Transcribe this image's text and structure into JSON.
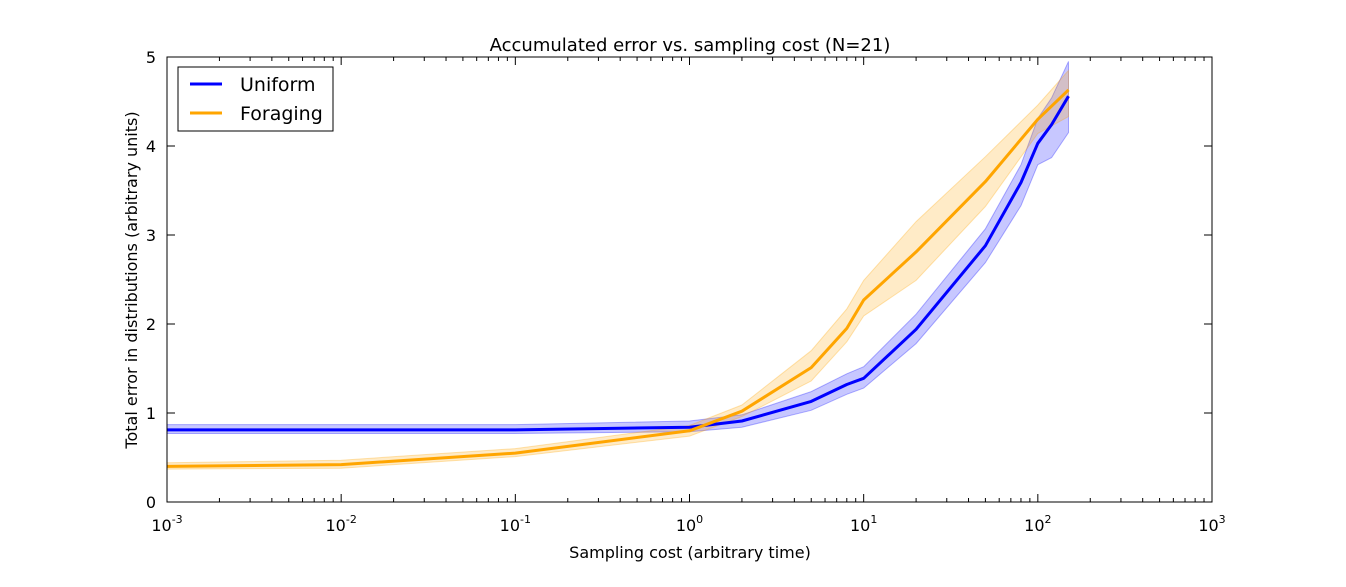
{
  "chart_data": {
    "type": "line",
    "title": "Accumulated error vs. sampling cost (N=21)",
    "xlabel": "Sampling cost (arbitrary time)",
    "ylabel": "Total error in distributions (arbitrary units)",
    "xscale": "log",
    "xlim": [
      0.001,
      1000
    ],
    "ylim": [
      0,
      5
    ],
    "x_ticks": [
      {
        "base": "10",
        "exp": "-3",
        "value": 0.001
      },
      {
        "base": "10",
        "exp": "-2",
        "value": 0.01
      },
      {
        "base": "10",
        "exp": "-1",
        "value": 0.1
      },
      {
        "base": "10",
        "exp": "0",
        "value": 1
      },
      {
        "base": "10",
        "exp": "1",
        "value": 10
      },
      {
        "base": "10",
        "exp": "2",
        "value": 100
      },
      {
        "base": "10",
        "exp": "3",
        "value": 1000
      }
    ],
    "y_ticks": [
      "0",
      "1",
      "2",
      "3",
      "4",
      "5"
    ],
    "grid": false,
    "legend_position": "top-left",
    "series": [
      {
        "name": "Uniform",
        "color": "#0000ff",
        "x": [
          0.001,
          0.01,
          0.1,
          1,
          2,
          5,
          8,
          10,
          20,
          50,
          80,
          100,
          120,
          150
        ],
        "y": [
          0.81,
          0.81,
          0.81,
          0.84,
          0.91,
          1.13,
          1.32,
          1.39,
          1.94,
          2.88,
          3.59,
          4.03,
          4.24,
          4.56
        ],
        "lower": [
          0.77,
          0.77,
          0.77,
          0.79,
          0.84,
          1.03,
          1.21,
          1.28,
          1.78,
          2.69,
          3.33,
          3.79,
          3.87,
          4.15
        ],
        "upper": [
          0.87,
          0.87,
          0.87,
          0.91,
          0.98,
          1.24,
          1.44,
          1.52,
          2.11,
          3.07,
          3.79,
          4.31,
          4.54,
          4.95
        ]
      },
      {
        "name": "Foraging",
        "color": "#ffa500",
        "x": [
          0.001,
          0.01,
          0.1,
          1,
          2,
          5,
          8,
          10,
          20,
          50,
          100,
          150
        ],
        "y": [
          0.4,
          0.42,
          0.55,
          0.8,
          1.02,
          1.51,
          1.95,
          2.27,
          2.81,
          3.6,
          4.3,
          4.63
        ],
        "lower": [
          0.37,
          0.38,
          0.51,
          0.74,
          0.96,
          1.36,
          1.8,
          2.09,
          2.49,
          3.32,
          4.14,
          4.33
        ],
        "upper": [
          0.44,
          0.47,
          0.6,
          0.86,
          1.09,
          1.7,
          2.17,
          2.49,
          3.15,
          3.88,
          4.46,
          4.85
        ]
      }
    ]
  }
}
